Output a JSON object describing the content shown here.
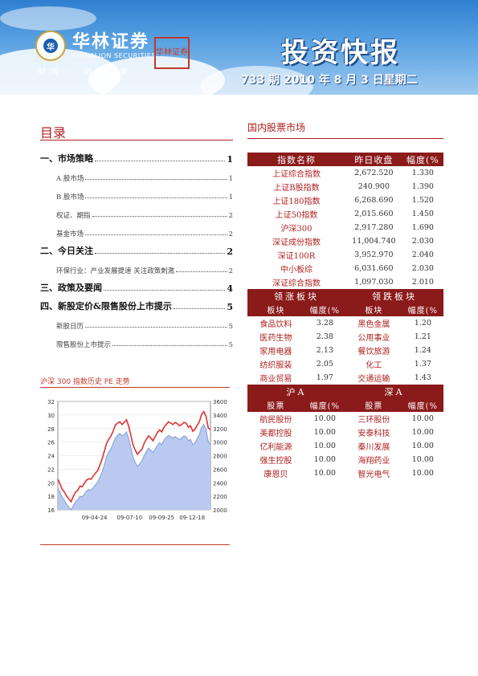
{
  "header": {
    "company_cn": "华林证券",
    "company_en": "CHINALION SECURITIES",
    "slogan": "财富 · 融资专家",
    "seal_text": "华林证券",
    "title": "投资快报",
    "issue_line": "733 期   2010 年 8 月 3 日星期二"
  },
  "toc": {
    "title": "目录",
    "items": [
      {
        "label": "一、市场策略",
        "page": "1",
        "level": 1
      },
      {
        "label": "A 股市场",
        "page": "1",
        "level": 2
      },
      {
        "label": "B 股市场",
        "page": "1",
        "level": 2
      },
      {
        "label": "权证、期指",
        "page": "2",
        "level": 2
      },
      {
        "label": "基金市场",
        "page": "2",
        "level": 2
      },
      {
        "label": "二、今日关注",
        "page": "2",
        "level": 1
      },
      {
        "label": "环保行业：产业发展提速  关注政策刺激",
        "page": "2",
        "level": 2
      },
      {
        "label": "三、政策及要闻",
        "page": "4",
        "level": 1
      },
      {
        "label": "四、新股定价&限售股份上市提示",
        "page": "5",
        "level": 1
      },
      {
        "label": "新股日历",
        "page": "5",
        "level": 2
      },
      {
        "label": "限售股份上市提示",
        "page": "5",
        "level": 2
      }
    ]
  },
  "chart_title": "沪深 300 指数历史 PE 走势",
  "chart_data": {
    "type": "line",
    "x_ticks": [
      "09-04-24",
      "09-07-10",
      "09-09-25",
      "09-12-18"
    ],
    "y_left_ticks": [
      "32",
      "30",
      "28",
      "26",
      "24",
      "22",
      "20",
      "18",
      "16"
    ],
    "y_right_ticks": [
      "3600",
      "3400",
      "3200",
      "3000",
      "2800",
      "2600",
      "2400",
      "2200",
      "2000"
    ],
    "ylim_left": [
      16,
      32
    ],
    "ylim_right": [
      2000,
      3600
    ],
    "series": [
      {
        "color": "#e03030",
        "axis": "left",
        "values": [
          20.5,
          19.8,
          19.0,
          18.6,
          18.0,
          17.6,
          17.2,
          18.0,
          18.6,
          18.9,
          19.5,
          19.4,
          19.9,
          20.4,
          20.6,
          20.5,
          21.0,
          21.4,
          21.8,
          22.6,
          23.5,
          24.6,
          25.8,
          26.4,
          26.9,
          27.6,
          28.5,
          28.8,
          29.0,
          28.6,
          28.9,
          29.3,
          28.4,
          27.0,
          25.6,
          24.8,
          24.2,
          24.6,
          24.9,
          25.8,
          26.4,
          26.9,
          26.6,
          26.2,
          26.8,
          27.4,
          27.8,
          27.5,
          28.2,
          28.6,
          29.0,
          28.8,
          28.6,
          28.9,
          28.7,
          28.4,
          28.6,
          28.9,
          28.8,
          28.2,
          28.4,
          27.6,
          27.9,
          28.5,
          29.0,
          30.1,
          30.5,
          29.8,
          28.1,
          27.8
        ]
      },
      {
        "color": "#7f9ed8",
        "axis": "right",
        "fill": "#b9c9ef",
        "values": [
          2320,
          2260,
          2180,
          2140,
          2080,
          2040,
          2000,
          2060,
          2120,
          2150,
          2200,
          2190,
          2230,
          2280,
          2300,
          2290,
          2330,
          2370,
          2410,
          2480,
          2560,
          2660,
          2780,
          2850,
          2900,
          2980,
          3060,
          3100,
          3130,
          3090,
          3110,
          3150,
          3060,
          2920,
          2780,
          2700,
          2640,
          2680,
          2720,
          2800,
          2860,
          2910,
          2880,
          2850,
          2900,
          2950,
          2990,
          2960,
          3030,
          3070,
          3100,
          3080,
          3060,
          3080,
          3060,
          3040,
          3060,
          3090,
          3080,
          3020,
          3040,
          2960,
          2990,
          3050,
          3110,
          3220,
          3260,
          3190,
          3010,
          2960
        ]
      }
    ]
  },
  "market": {
    "title": "国内股票市场",
    "index_header": [
      "指数名称",
      "昨日收盘",
      "幅度(%"
    ],
    "indices": [
      {
        "name": "上证综合指数",
        "close": "2,672.520",
        "chg": "1.330"
      },
      {
        "name": "上证B股指数",
        "close": "240.900",
        "chg": "1.390"
      },
      {
        "name": "上证180指数",
        "close": "6,268.690",
        "chg": "1.520"
      },
      {
        "name": "上证50指数",
        "close": "2,015.660",
        "chg": "1.450"
      },
      {
        "name": "沪深300",
        "close": "2,917.280",
        "chg": "1.690"
      },
      {
        "name": "深证成份指数",
        "close": "11,004.740",
        "chg": "2.030"
      },
      {
        "name": "深证100R",
        "close": "3,952.970",
        "chg": "2.040"
      },
      {
        "name": "中小板综",
        "close": "6,031.660",
        "chg": "2.030"
      },
      {
        "name": "深证综合指数",
        "close": "1,097.030",
        "chg": "2.010"
      }
    ],
    "sector_header": [
      "领涨板块",
      "领跌板块"
    ],
    "sector_sub": [
      "板块",
      "幅度(%",
      "板块",
      "幅度(%"
    ],
    "sectors": [
      {
        "up": "食品饮料",
        "up_chg": "3.28",
        "down": "黑色金属",
        "down_chg": "1.20"
      },
      {
        "up": "医药生物",
        "up_chg": "2.38",
        "down": "公用事业",
        "down_chg": "1.21"
      },
      {
        "up": "家用电器",
        "up_chg": "2.13",
        "down": "餐饮旅游",
        "down_chg": "1.24"
      },
      {
        "up": "纺织服装",
        "up_chg": "2.05",
        "down": "化工",
        "down_chg": "1.37"
      },
      {
        "up": "商业贸易",
        "up_chg": "1.97",
        "down": "交通运输",
        "down_chg": "1.43"
      }
    ],
    "stock_header": [
      "沪A",
      "深A"
    ],
    "stock_sub": [
      "股票",
      "幅度(%",
      "股票",
      "幅度(%"
    ],
    "stocks": [
      {
        "sh": "航民股份",
        "sh_chg": "10.00",
        "sz": "三环股份",
        "sz_chg": "10.00"
      },
      {
        "sh": "美都控股",
        "sh_chg": "10.00",
        "sz": "安泰科技",
        "sz_chg": "10.00"
      },
      {
        "sh": "亿利能源",
        "sh_chg": "10.00",
        "sz": "秦川发展",
        "sz_chg": "10.00"
      },
      {
        "sh": "强生控股",
        "sh_chg": "10.00",
        "sz": "海翔药业",
        "sz_chg": "10.00"
      },
      {
        "sh": "康恩贝",
        "sh_chg": "10.00",
        "sz": "智光电气",
        "sz_chg": "10.00"
      }
    ]
  }
}
